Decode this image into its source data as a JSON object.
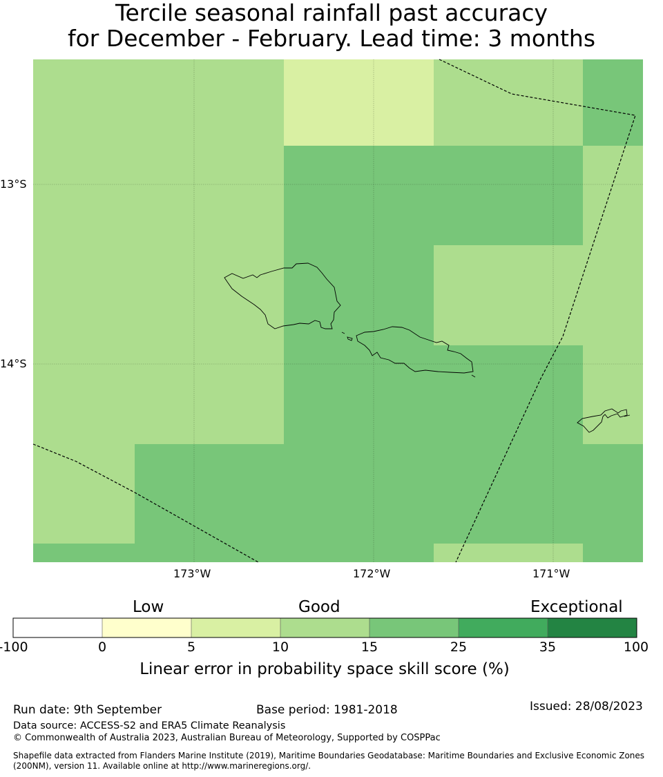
{
  "title_line1": "Tercile seasonal rainfall past accuracy",
  "title_line2": "for December - February. Lead time: 3 months",
  "map": {
    "lat_ticks": [
      "13°S",
      "14°S"
    ],
    "lon_ticks": [
      "173°W",
      "172°W",
      "171°W"
    ]
  },
  "colorbar": {
    "categories": [
      "Low",
      "Good",
      "Exceptional"
    ],
    "bounds": [
      "-100",
      "0",
      "5",
      "10",
      "15",
      "25",
      "35",
      "100"
    ],
    "colors": [
      "#ffffff",
      "#ffffcc",
      "#d9f0a3",
      "#addd8e",
      "#78c679",
      "#41ab5d",
      "#238443"
    ],
    "label": "Linear error in probability space skill score (%)"
  },
  "footer": {
    "run_date": "Run date: 9th September",
    "base_period": "Base period: 1981-2018",
    "issued": "Issued: 28/08/2023",
    "data_source": "Data source: ACCESS-S2 and ERA5 Climate Reanalysis",
    "copyright": "© Commonwealth of Australia 2023, Australian Bureau of Meteorology, Supported by COSPPac",
    "shapefile": "Shapefile data extracted from Flanders Marine Institute (2019), Maritime Boundaries Geodatabase: Maritime Boundaries and Exclusive Economic Zones (200NM), version 11. Available online at http://www.marineregions.org/."
  }
}
